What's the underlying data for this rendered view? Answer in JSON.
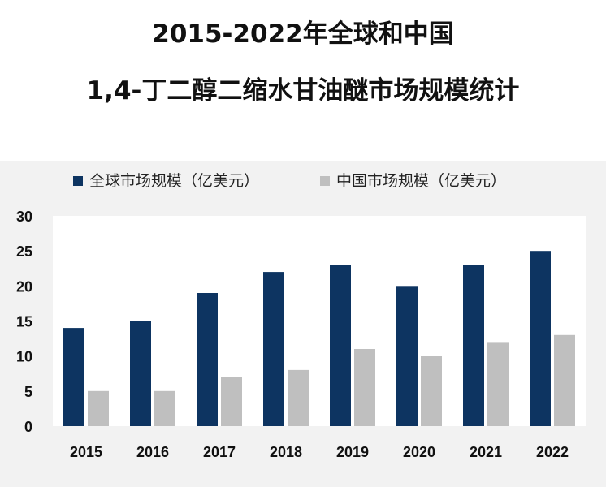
{
  "title": {
    "line1": "2015-2022年全球和中国",
    "line2": "1,4-丁二醇二缩水甘油醚市场规模统计"
  },
  "colors": {
    "global": "#0d3461",
    "china": "#bfbfbf",
    "panel": "#f2f2f2",
    "plot": "#ffffff"
  },
  "chart_data": {
    "type": "bar",
    "categories": [
      "2015",
      "2016",
      "2017",
      "2018",
      "2019",
      "2020",
      "2021",
      "2022"
    ],
    "series": [
      {
        "name": "全球市场规模（亿美元）",
        "values": [
          14,
          15,
          19,
          22,
          23,
          20,
          23,
          25
        ]
      },
      {
        "name": "中国市场规模（亿美元）",
        "values": [
          5,
          5,
          7,
          8,
          11,
          10,
          12,
          13
        ]
      }
    ],
    "yticks": [
      "0",
      "5",
      "10",
      "15",
      "20",
      "25",
      "30"
    ],
    "ylim": [
      0,
      30
    ],
    "grid": false,
    "legend": "top"
  }
}
